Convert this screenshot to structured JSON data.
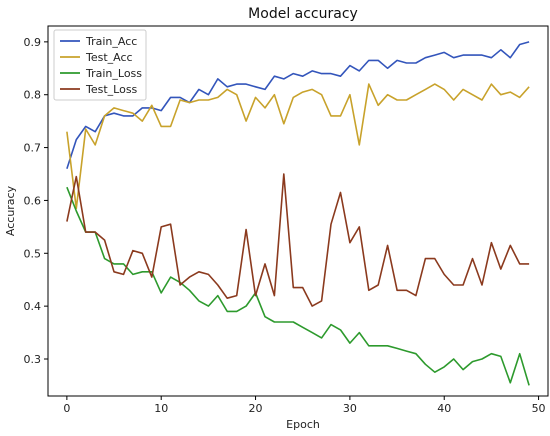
{
  "chart_data": {
    "type": "line",
    "title": "Model accuracy",
    "xlabel": "Epoch",
    "ylabel": "Accuracy",
    "xlim": [
      -2,
      51
    ],
    "ylim": [
      0.23,
      0.93
    ],
    "xticks": [
      0,
      10,
      20,
      30,
      40,
      50
    ],
    "yticks": [
      0.3,
      0.4,
      0.5,
      0.6,
      0.7,
      0.8,
      0.9
    ],
    "grid": false,
    "legend_position": "top-left",
    "x": [
      0,
      1,
      2,
      3,
      4,
      5,
      6,
      7,
      8,
      9,
      10,
      11,
      12,
      13,
      14,
      15,
      16,
      17,
      18,
      19,
      20,
      21,
      22,
      23,
      24,
      25,
      26,
      27,
      28,
      29,
      30,
      31,
      32,
      33,
      34,
      35,
      36,
      37,
      38,
      39,
      40,
      41,
      42,
      43,
      44,
      45,
      46,
      47,
      48,
      49
    ],
    "series": [
      {
        "name": "Train_Acc",
        "color": "#3355bb",
        "values": [
          0.66,
          0.715,
          0.74,
          0.73,
          0.76,
          0.765,
          0.76,
          0.76,
          0.775,
          0.775,
          0.77,
          0.795,
          0.795,
          0.785,
          0.81,
          0.8,
          0.83,
          0.815,
          0.82,
          0.82,
          0.815,
          0.81,
          0.835,
          0.83,
          0.84,
          0.835,
          0.845,
          0.84,
          0.84,
          0.835,
          0.855,
          0.845,
          0.865,
          0.865,
          0.85,
          0.865,
          0.86,
          0.86,
          0.87,
          0.875,
          0.88,
          0.87,
          0.875,
          0.875,
          0.875,
          0.87,
          0.885,
          0.87,
          0.895,
          0.9
        ]
      },
      {
        "name": "Test_Acc",
        "color": "#c8a22b",
        "values": [
          0.73,
          0.585,
          0.735,
          0.705,
          0.76,
          0.775,
          0.77,
          0.765,
          0.75,
          0.78,
          0.74,
          0.74,
          0.79,
          0.785,
          0.79,
          0.79,
          0.795,
          0.81,
          0.8,
          0.75,
          0.795,
          0.775,
          0.8,
          0.745,
          0.795,
          0.805,
          0.81,
          0.8,
          0.76,
          0.76,
          0.8,
          0.705,
          0.82,
          0.78,
          0.8,
          0.79,
          0.79,
          0.8,
          0.81,
          0.82,
          0.81,
          0.79,
          0.81,
          0.8,
          0.79,
          0.82,
          0.8,
          0.805,
          0.795,
          0.815
        ]
      },
      {
        "name": "Train_Loss",
        "color": "#2d9a2d",
        "values": [
          0.625,
          0.58,
          0.54,
          0.54,
          0.49,
          0.48,
          0.48,
          0.46,
          0.465,
          0.465,
          0.425,
          0.455,
          0.445,
          0.43,
          0.41,
          0.4,
          0.42,
          0.39,
          0.39,
          0.4,
          0.425,
          0.38,
          0.37,
          0.37,
          0.37,
          0.36,
          0.35,
          0.34,
          0.365,
          0.355,
          0.33,
          0.35,
          0.325,
          0.325,
          0.325,
          0.32,
          0.315,
          0.31,
          0.29,
          0.275,
          0.285,
          0.3,
          0.28,
          0.295,
          0.3,
          0.31,
          0.305,
          0.255,
          0.31,
          0.25
        ]
      },
      {
        "name": "Test_Loss",
        "color": "#8b3a1e",
        "values": [
          0.56,
          0.645,
          0.54,
          0.54,
          0.525,
          0.465,
          0.46,
          0.505,
          0.5,
          0.455,
          0.55,
          0.555,
          0.44,
          0.455,
          0.465,
          0.46,
          0.44,
          0.415,
          0.42,
          0.545,
          0.42,
          0.48,
          0.42,
          0.65,
          0.435,
          0.435,
          0.4,
          0.41,
          0.555,
          0.615,
          0.52,
          0.55,
          0.43,
          0.44,
          0.515,
          0.43,
          0.43,
          0.42,
          0.49,
          0.49,
          0.46,
          0.44,
          0.44,
          0.49,
          0.44,
          0.52,
          0.47,
          0.515,
          0.48,
          0.48
        ]
      }
    ]
  }
}
